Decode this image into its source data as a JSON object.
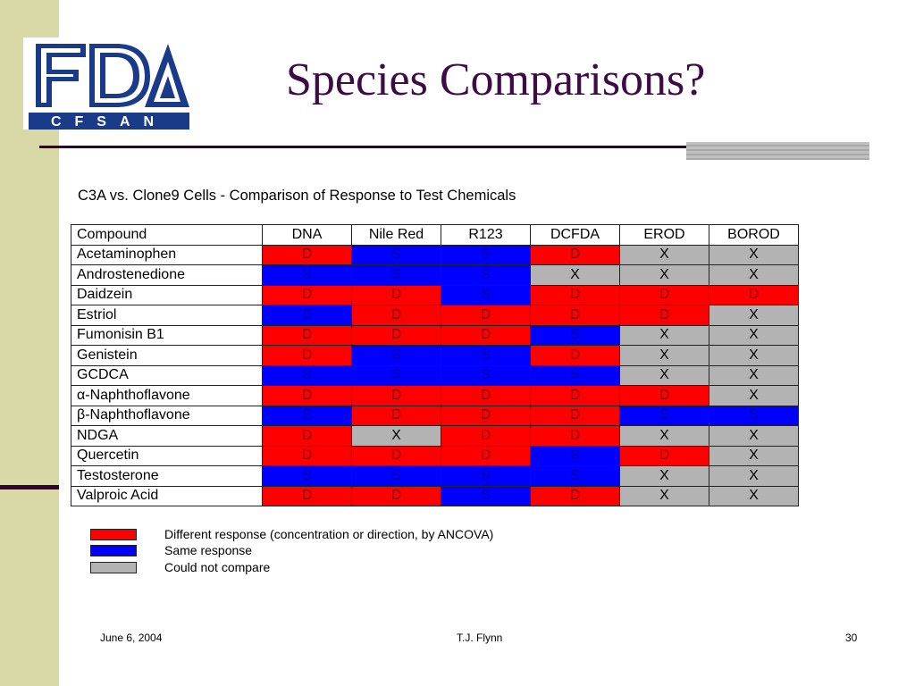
{
  "logo": {
    "top_text": "FDA",
    "bottom_text": "CFSAN"
  },
  "slide": {
    "title": "Species Comparisons?"
  },
  "table": {
    "caption": "C3A vs. Clone9 Cells - Comparison of Response to Test Chemicals",
    "headers": [
      "Compound",
      "DNA",
      "Nile Red",
      "R123",
      "DCFDA",
      "EROD",
      "BOROD"
    ],
    "rows": [
      {
        "compound": "Acetaminophen",
        "cells": [
          "D",
          "S",
          "S",
          "D",
          "X",
          "X"
        ]
      },
      {
        "compound": "Androstenedione",
        "cells": [
          "S",
          "S",
          "S",
          "X",
          "X",
          "X"
        ]
      },
      {
        "compound": "Daidzein",
        "cells": [
          "D",
          "D",
          "S",
          "D",
          "D",
          "D"
        ]
      },
      {
        "compound": "Estriol",
        "cells": [
          "S",
          "D",
          "D",
          "D",
          "D",
          "X"
        ]
      },
      {
        "compound": "Fumonisin B1",
        "cells": [
          "D",
          "D",
          "D",
          "S",
          "X",
          "X"
        ]
      },
      {
        "compound": "Genistein",
        "cells": [
          "D",
          "S",
          "S",
          "D",
          "X",
          "X"
        ]
      },
      {
        "compound": "GCDCA",
        "cells": [
          "S",
          "S",
          "S",
          "S",
          "X",
          "X"
        ]
      },
      {
        "compound": "α-Naphthoflavone",
        "cells": [
          "D",
          "D",
          "D",
          "D",
          "D",
          "X"
        ]
      },
      {
        "compound": "β-Naphthoflavone",
        "cells": [
          "S",
          "D",
          "D",
          "D",
          "S",
          "S"
        ]
      },
      {
        "compound": "NDGA",
        "cells": [
          "D",
          "X",
          "D",
          "D",
          "X",
          "X"
        ]
      },
      {
        "compound": "Quercetin",
        "cells": [
          "D",
          "D",
          "D",
          "S",
          "D",
          "X"
        ]
      },
      {
        "compound": "Testosterone",
        "cells": [
          "S",
          "S",
          "S",
          "S",
          "X",
          "X"
        ]
      },
      {
        "compound": "Valproic Acid",
        "cells": [
          "D",
          "D",
          "S",
          "D",
          "X",
          "X"
        ]
      }
    ]
  },
  "legend": [
    {
      "text": "Different response (concentration or direction, by ANCOVA)",
      "color": "#ff0000"
    },
    {
      "text": "Same response",
      "color": "#0000ff"
    },
    {
      "text": "Could not compare",
      "color": "#b3b3b3"
    }
  ],
  "footer": {
    "date": "June 6, 2004",
    "author": "T.J. Flynn",
    "page": "30"
  },
  "colors": {
    "title": "#3d0b45",
    "accent_band": "#d9d9a8",
    "rule": "#33003a"
  }
}
